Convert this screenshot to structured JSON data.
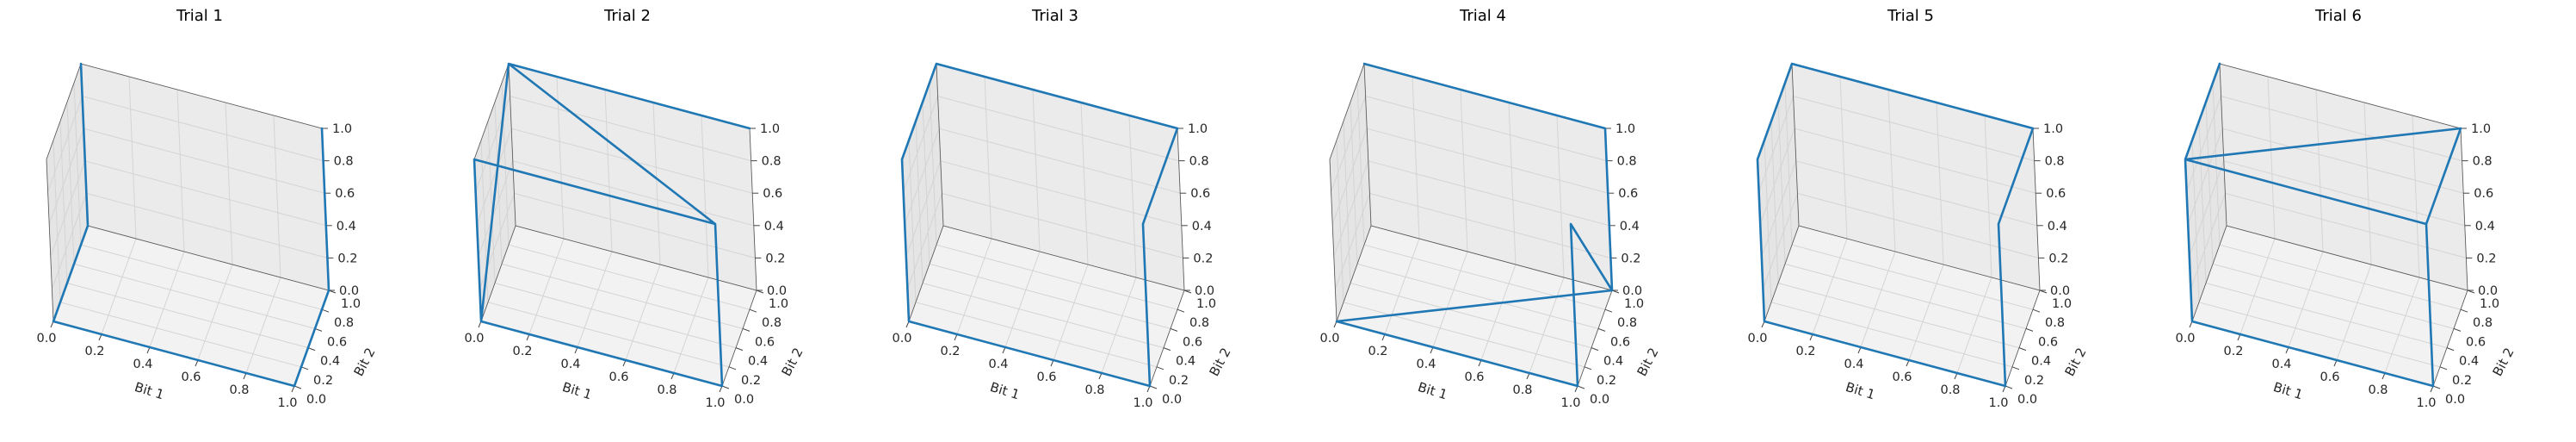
{
  "chart_data": [
    {
      "type": "line3d",
      "title": "Trial 1",
      "xlabel": "Bit 1",
      "ylabel": "Bit 2",
      "zlabel": "",
      "xlim": [
        0,
        1
      ],
      "ylim": [
        0,
        1
      ],
      "zlim": [
        0,
        1
      ],
      "grid": true,
      "xticks": [
        "0.0",
        "0.2",
        "0.4",
        "0.6",
        "0.8",
        "1.0"
      ],
      "yticks": [
        "0.0",
        "0.2",
        "0.4",
        "0.6",
        "0.8",
        "1.0"
      ],
      "zticks": [
        "0.0",
        "0.2",
        "0.4",
        "0.6",
        "0.8",
        "1.0"
      ],
      "path": [
        [
          0,
          1,
          1
        ],
        [
          0,
          1,
          0
        ],
        [
          0,
          0,
          0
        ],
        [
          1,
          0,
          0
        ],
        [
          1,
          1,
          0
        ],
        [
          1,
          1,
          1
        ]
      ]
    },
    {
      "type": "line3d",
      "title": "Trial 2",
      "xlabel": "Bit 1",
      "ylabel": "Bit 2",
      "zlabel": "",
      "xlim": [
        0,
        1
      ],
      "ylim": [
        0,
        1
      ],
      "zlim": [
        0,
        1
      ],
      "grid": true,
      "xticks": [
        "0.0",
        "0.2",
        "0.4",
        "0.6",
        "0.8",
        "1.0"
      ],
      "yticks": [
        "0.0",
        "0.2",
        "0.4",
        "0.6",
        "0.8",
        "1.0"
      ],
      "zticks": [
        "0.0",
        "0.2",
        "0.4",
        "0.6",
        "0.8",
        "1.0"
      ],
      "path": [
        [
          0,
          0,
          1
        ],
        [
          1,
          0,
          1
        ],
        [
          1,
          0,
          0
        ],
        [
          0,
          0,
          0
        ],
        [
          0,
          1,
          1
        ],
        [
          1,
          0,
          1
        ],
        [
          0,
          0,
          1
        ],
        [
          0,
          0,
          0
        ],
        [
          0,
          1,
          1
        ],
        [
          1,
          1,
          1
        ]
      ]
    },
    {
      "type": "line3d",
      "title": "Trial 3",
      "xlabel": "Bit 1",
      "ylabel": "Bit 2",
      "zlabel": "",
      "xlim": [
        0,
        1
      ],
      "ylim": [
        0,
        1
      ],
      "zlim": [
        0,
        1
      ],
      "grid": true,
      "xticks": [
        "0.0",
        "0.2",
        "0.4",
        "0.6",
        "0.8",
        "1.0"
      ],
      "yticks": [
        "0.0",
        "0.2",
        "0.4",
        "0.6",
        "0.8",
        "1.0"
      ],
      "zticks": [
        "0.0",
        "0.2",
        "0.4",
        "0.6",
        "0.8",
        "1.0"
      ],
      "path": [
        [
          0,
          0,
          1
        ],
        [
          0,
          0,
          0
        ],
        [
          1,
          0,
          0
        ],
        [
          1,
          0,
          1
        ],
        [
          1,
          1,
          1
        ],
        [
          0,
          1,
          1
        ],
        [
          0,
          0,
          1
        ]
      ]
    },
    {
      "type": "line3d",
      "title": "Trial 4",
      "xlabel": "Bit 1",
      "ylabel": "Bit 2",
      "zlabel": "",
      "xlim": [
        0,
        1
      ],
      "ylim": [
        0,
        1
      ],
      "zlim": [
        0,
        1
      ],
      "grid": true,
      "xticks": [
        "0.0",
        "0.2",
        "0.4",
        "0.6",
        "0.8",
        "1.0"
      ],
      "yticks": [
        "0.0",
        "0.2",
        "0.4",
        "0.6",
        "0.8",
        "1.0"
      ],
      "zticks": [
        "0.0",
        "0.2",
        "0.4",
        "0.6",
        "0.8",
        "1.0"
      ],
      "path": [
        [
          0,
          1,
          1
        ],
        [
          1,
          1,
          1
        ],
        [
          1,
          1,
          0
        ],
        [
          1,
          0,
          1
        ],
        [
          1,
          0,
          0
        ],
        [
          0,
          0,
          0
        ],
        [
          1,
          1,
          0
        ]
      ]
    },
    {
      "type": "line3d",
      "title": "Trial 5",
      "xlabel": "Bit 1",
      "ylabel": "Bit 2",
      "zlabel": "",
      "xlim": [
        0,
        1
      ],
      "ylim": [
        0,
        1
      ],
      "zlim": [
        0,
        1
      ],
      "grid": true,
      "xticks": [
        "0.0",
        "0.2",
        "0.4",
        "0.6",
        "0.8",
        "1.0"
      ],
      "yticks": [
        "0.0",
        "0.2",
        "0.4",
        "0.6",
        "0.8",
        "1.0"
      ],
      "zticks": [
        "0.0",
        "0.2",
        "0.4",
        "0.6",
        "0.8",
        "1.0"
      ],
      "path": [
        [
          1,
          1,
          1
        ],
        [
          0,
          1,
          1
        ],
        [
          0,
          0,
          1
        ],
        [
          0,
          0,
          0
        ],
        [
          1,
          0,
          0
        ],
        [
          1,
          0,
          1
        ],
        [
          1,
          1,
          1
        ]
      ]
    },
    {
      "type": "line3d",
      "title": "Trial 6",
      "xlabel": "Bit 1",
      "ylabel": "Bit 2",
      "zlabel": "",
      "xlim": [
        0,
        1
      ],
      "ylim": [
        0,
        1
      ],
      "zlim": [
        0,
        1
      ],
      "grid": true,
      "xticks": [
        "0.0",
        "0.2",
        "0.4",
        "0.6",
        "0.8",
        "1.0"
      ],
      "yticks": [
        "0.0",
        "0.2",
        "0.4",
        "0.6",
        "0.8",
        "1.0"
      ],
      "zticks": [
        "0.0",
        "0.2",
        "0.4",
        "0.6",
        "0.8",
        "1.0"
      ],
      "path": [
        [
          0,
          1,
          1
        ],
        [
          0,
          0,
          1
        ],
        [
          0,
          0,
          0
        ],
        [
          1,
          0,
          0
        ],
        [
          1,
          0,
          1
        ],
        [
          1,
          1,
          1
        ],
        [
          1,
          0,
          1
        ],
        [
          0,
          0,
          1
        ],
        [
          1,
          1,
          1
        ]
      ]
    }
  ],
  "colors": {
    "series": "#1f77b4",
    "pane": "#f2f2f2",
    "grid": "#d4d4d4"
  }
}
